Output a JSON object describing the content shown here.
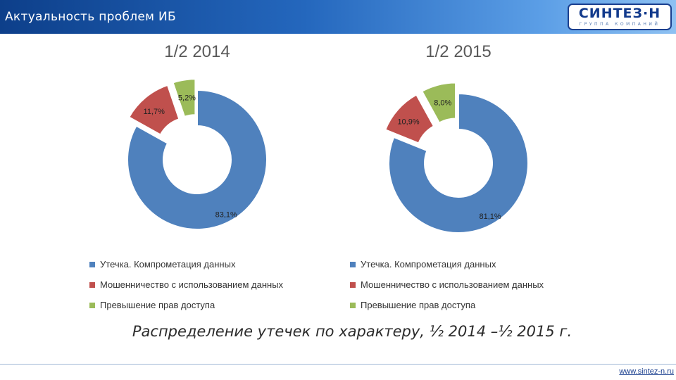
{
  "header": {
    "title": "Актуальность проблем ИБ",
    "logo_text": "СИНТЕЗ·Н",
    "logo_subtext": "ГРУППА КОМПАНИЙ"
  },
  "legend_items": [
    {
      "label": "Утечка. Компрометация данных",
      "color": "#4f81bd"
    },
    {
      "label": "Мошенничество с использованием данных",
      "color": "#c0504d"
    },
    {
      "label": "Превышение прав доступа",
      "color": "#9bbb59"
    }
  ],
  "caption": "Распределение утечек по характеру, ½ 2014 –½ 2015 г.",
  "footer": {
    "url": "www.sintez-n.ru"
  },
  "chart_data": [
    {
      "type": "pie",
      "title": "1/2 2014",
      "categories": [
        "Утечка. Компрометация данных",
        "Мошенничество с использованием данных",
        "Превышение прав доступа"
      ],
      "values": [
        83.1,
        11.7,
        5.2
      ],
      "value_labels": [
        "83,1%",
        "11,7%",
        "5,2%"
      ],
      "colors": [
        "#4f81bd",
        "#c0504d",
        "#9bbb59"
      ],
      "legend": "bottom"
    },
    {
      "type": "pie",
      "title": "1/2 2015",
      "categories": [
        "Утечка. Компрометация данных",
        "Мошенничество с использованием данных",
        "Превышение прав доступа"
      ],
      "values": [
        81.1,
        10.9,
        8.0
      ],
      "value_labels": [
        "81,1%",
        "10,9%",
        "8,0%"
      ],
      "colors": [
        "#4f81bd",
        "#c0504d",
        "#9bbb59"
      ],
      "legend": "bottom"
    }
  ]
}
